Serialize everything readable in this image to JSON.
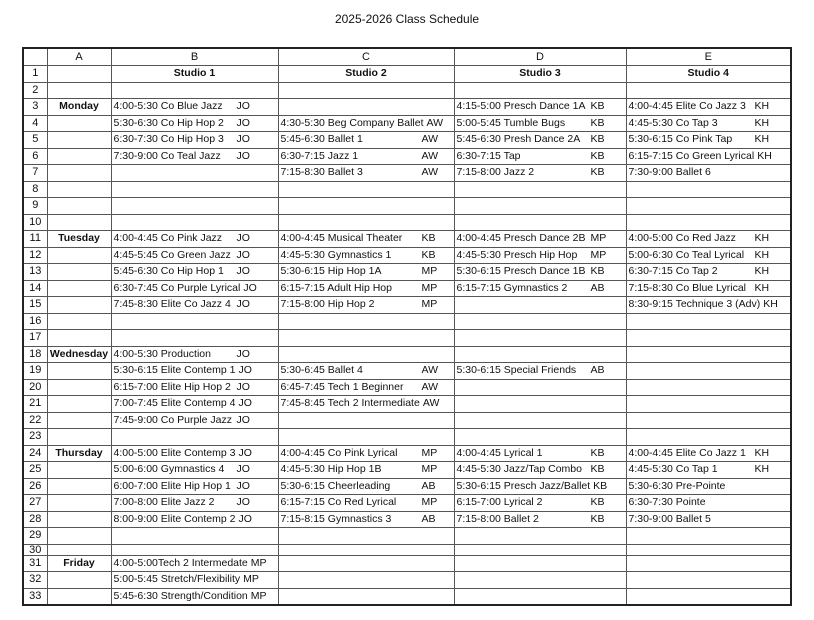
{
  "title": "2025-2026 Class Schedule",
  "columns": [
    "A",
    "B",
    "C",
    "D",
    "E"
  ],
  "studios": [
    "Studio 1",
    "Studio 2",
    "Studio 3",
    "Studio 4"
  ],
  "rows": [
    {
      "n": "2",
      "day": "",
      "cells": [
        null,
        null,
        null,
        null
      ]
    },
    {
      "n": "3",
      "day": "Monday",
      "cells": [
        {
          "t": "4:00-5:30 Co Blue Jazz",
          "i": "JO"
        },
        null,
        {
          "t": "4:15-5:00  Presch Dance 1A",
          "i": "KB"
        },
        {
          "t": "4:00-4:45 Elite Co Jazz 3",
          "i": "KH"
        }
      ]
    },
    {
      "n": "4",
      "day": "",
      "cells": [
        {
          "t": "5:30-6:30 Co Hip Hop 2",
          "i": "JO"
        },
        {
          "t": "4:30-5:30 Beg Company Ballet",
          "i": "AW"
        },
        {
          "t": "5:00-5:45  Tumble Bugs",
          "i": "KB"
        },
        {
          "t": "4:45-5:30 Co Tap 3",
          "i": "KH"
        }
      ]
    },
    {
      "n": "5",
      "day": "",
      "cells": [
        {
          "t": "6:30-7:30 Co Hip Hop 3",
          "i": "JO"
        },
        {
          "t": "5:45-6:30 Ballet 1",
          "i": "AW"
        },
        {
          "t": "5:45-6:30 Presh Dance 2A",
          "i": "KB"
        },
        {
          "t": "5:30-6:15 Co Pink Tap",
          "i": "KH"
        }
      ]
    },
    {
      "n": "6",
      "day": "",
      "cells": [
        {
          "t": "7:30-9:00 Co Teal Jazz",
          "i": "JO"
        },
        {
          "t": "6:30-7:15 Jazz 1",
          "i": "AW"
        },
        {
          "t": "6:30-7:15 Tap",
          "i": "KB"
        },
        {
          "t": "6:15-7:15 Co Green Lyrical",
          "i": "KH"
        }
      ]
    },
    {
      "n": "7",
      "day": "",
      "cells": [
        null,
        {
          "t": "7:15-8:30 Ballet 3",
          "i": "AW"
        },
        {
          "t": "7:15-8:00 Jazz 2",
          "i": "KB"
        },
        {
          "t": "7:30-9:00 Ballet 6",
          "i": ""
        }
      ]
    },
    {
      "n": "8",
      "day": "",
      "cells": [
        null,
        null,
        null,
        null
      ]
    },
    {
      "n": "9",
      "day": "",
      "cells": [
        null,
        null,
        null,
        null
      ]
    },
    {
      "n": "10",
      "day": "",
      "cells": [
        null,
        null,
        null,
        null
      ]
    },
    {
      "n": "11",
      "day": "Tuesday",
      "cells": [
        {
          "t": "4:00-4:45 Co Pink Jazz",
          "i": "JO"
        },
        {
          "t": "4:00-4:45 Musical Theater",
          "i": "KB"
        },
        {
          "t": "4:00-4:45 Presch Dance 2B",
          "i": "MP"
        },
        {
          "t": "4:00-5:00 Co Red Jazz",
          "i": "KH"
        }
      ]
    },
    {
      "n": "12",
      "day": "",
      "cells": [
        {
          "t": "4:45-5:45 Co Green Jazz",
          "i": "JO"
        },
        {
          "t": "4:45-5:30 Gymnastics 1",
          "i": "KB"
        },
        {
          "t": "4:45-5:30  Presch Hip Hop",
          "i": "MP"
        },
        {
          "t": "5:00-6:30 Co Teal Lyrical",
          "i": "KH"
        }
      ]
    },
    {
      "n": "13",
      "day": "",
      "cells": [
        {
          "t": "5:45-6:30 Co Hip Hop 1",
          "i": "JO"
        },
        {
          "t": "5:30-6:15 Hip Hop 1A",
          "i": "MP"
        },
        {
          "t": "5:30-6:15  Presch Dance 1B",
          "i": "KB"
        },
        {
          "t": "6:30-7:15 Co Tap 2",
          "i": "KH"
        }
      ]
    },
    {
      "n": "14",
      "day": "",
      "cells": [
        {
          "t": "6:30-7:45 Co Purple Lyrical",
          "i": "JO"
        },
        {
          "t": "6:15-7:15 Adult Hip Hop",
          "i": "MP"
        },
        {
          "t": "6:15-7:15 Gymnastics  2",
          "i": "AB"
        },
        {
          "t": "7:15-8:30 Co Blue Lyrical",
          "i": "KH"
        }
      ]
    },
    {
      "n": "15",
      "day": "",
      "cells": [
        {
          "t": "7:45-8:30 Elite Co Jazz 4",
          "i": "JO"
        },
        {
          "t": "7:15-8:00 Hip Hop 2",
          "i": "MP"
        },
        null,
        {
          "t": "8:30-9:15 Technique 3 (Adv)",
          "i": "KH"
        }
      ]
    },
    {
      "n": "16",
      "day": "",
      "cells": [
        null,
        null,
        null,
        null
      ]
    },
    {
      "n": "17",
      "day": "",
      "cells": [
        null,
        null,
        null,
        null
      ]
    },
    {
      "n": "18",
      "day": "Wednesday",
      "cells": [
        {
          "t": "4:00-5:30 Production",
          "i": "JO"
        },
        null,
        null,
        null
      ]
    },
    {
      "n": "19",
      "day": "",
      "cells": [
        {
          "t": "5:30-6:15 Elite Contemp 1",
          "i": "JO"
        },
        {
          "t": "5:30-6:45 Ballet 4",
          "i": "AW"
        },
        {
          "t": "5:30-6:15 Special Friends",
          "i": "AB"
        },
        null
      ]
    },
    {
      "n": "20",
      "day": "",
      "cells": [
        {
          "t": "6:15-7:00 Elite Hip Hop 2",
          "i": "JO"
        },
        {
          "t": "6:45-7:45 Tech 1 Beginner",
          "i": "AW"
        },
        null,
        null
      ]
    },
    {
      "n": "21",
      "day": "",
      "cells": [
        {
          "t": "7:00-7:45 Elite Contemp 4",
          "i": "JO"
        },
        {
          "t": "7:45-8:45 Tech 2 Intermediate",
          "i": "AW"
        },
        null,
        null
      ]
    },
    {
      "n": "22",
      "day": "",
      "cells": [
        {
          "t": "7:45-9:00 Co Purple Jazz",
          "i": "JO"
        },
        null,
        null,
        null
      ]
    },
    {
      "n": "23",
      "day": "",
      "cells": [
        null,
        null,
        null,
        null
      ]
    },
    {
      "n": "24",
      "day": "Thursday",
      "cells": [
        {
          "t": "4:00-5:00 Elite Contemp 3",
          "i": "JO"
        },
        {
          "t": "4:00-4:45 Co Pink Lyrical",
          "i": "MP"
        },
        {
          "t": "4:00-4:45 Lyrical 1",
          "i": "KB"
        },
        {
          "t": "4:00-4:45 Elite Co Jazz 1",
          "i": "KH"
        }
      ]
    },
    {
      "n": "25",
      "day": "",
      "cells": [
        {
          "t": "5:00-6:00 Gymnastics 4",
          "i": "JO"
        },
        {
          "t": "4:45-5:30 Hip Hop 1B",
          "i": "MP"
        },
        {
          "t": "4:45-5:30 Jazz/Tap Combo",
          "i": "KB"
        },
        {
          "t": "4:45-5:30 Co Tap 1",
          "i": "KH"
        }
      ]
    },
    {
      "n": "26",
      "day": "",
      "cells": [
        {
          "t": "6:00-7:00 Elite Hip Hop 1",
          "i": "JO"
        },
        {
          "t": "5:30-6:15 Cheerleading",
          "i": "AB"
        },
        {
          "t": "5:30-6:15 Presch Jazz/Ballet",
          "i": "KB"
        },
        {
          "t": "5:30-6:30 Pre-Pointe",
          "i": ""
        }
      ]
    },
    {
      "n": "27",
      "day": "",
      "cells": [
        {
          "t": "7:00-8:00 Elite Jazz 2",
          "i": "JO"
        },
        {
          "t": "6:15-7:15 Co Red Lyrical",
          "i": "MP"
        },
        {
          "t": "6:15-7:00 Lyrical 2",
          "i": "KB"
        },
        {
          "t": "6:30-7:30 Pointe",
          "i": ""
        }
      ]
    },
    {
      "n": "28",
      "day": "",
      "cells": [
        {
          "t": "8:00-9:00 Elite Contemp 2",
          "i": "JO"
        },
        {
          "t": "7:15-8:15 Gymnastics 3",
          "i": "AB"
        },
        {
          "t": "7:15-8:00 Ballet 2",
          "i": "KB"
        },
        {
          "t": "7:30-9:00 Ballet 5",
          "i": ""
        }
      ]
    },
    {
      "n": "29",
      "day": "",
      "cells": [
        null,
        null,
        null,
        null
      ]
    },
    {
      "n": "30",
      "day": "",
      "cells": [
        null,
        null,
        null,
        null
      ]
    },
    {
      "n": "31",
      "day": "Friday",
      "cells": [
        {
          "t": "4:00-5:00Tech 2 Intermedate",
          "i": "MP"
        },
        null,
        null,
        null
      ]
    },
    {
      "n": "32",
      "day": "",
      "cells": [
        {
          "t": "5:00-5:45 Stretch/Flexibility",
          "i": "MP"
        },
        null,
        null,
        null
      ]
    },
    {
      "n": "33",
      "day": "",
      "cells": [
        {
          "t": "5:45-6:30 Strength/Condition",
          "i": "MP"
        },
        null,
        null,
        null
      ]
    }
  ]
}
